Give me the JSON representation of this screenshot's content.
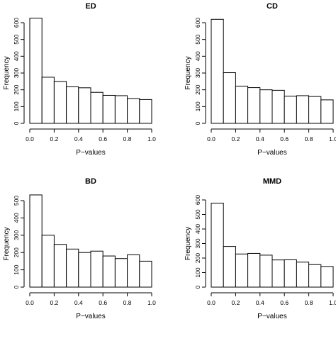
{
  "chart_data": [
    {
      "type": "bar",
      "title": "ED",
      "xlabel": "P−values",
      "ylabel": "Frequency",
      "bin_edges": [
        0,
        0.1,
        0.2,
        0.3,
        0.4,
        0.5,
        0.6,
        0.7,
        0.8,
        0.9,
        1.0
      ],
      "values": [
        627,
        275,
        250,
        218,
        212,
        185,
        167,
        165,
        148,
        142
      ],
      "xticks": [
        "0.0",
        "0.2",
        "0.4",
        "0.6",
        "0.8",
        "1.0"
      ],
      "yticks": [
        "0",
        "100",
        "200",
        "300",
        "400",
        "500",
        "600"
      ],
      "xlim": [
        0,
        1.0
      ],
      "ylim": [
        0,
        600
      ],
      "grid": false
    },
    {
      "type": "bar",
      "title": "CD",
      "xlabel": "P−values",
      "ylabel": "Frequency",
      "bin_edges": [
        0,
        0.1,
        0.2,
        0.3,
        0.4,
        0.5,
        0.6,
        0.7,
        0.8,
        0.9,
        1.0
      ],
      "values": [
        620,
        302,
        222,
        213,
        200,
        197,
        162,
        165,
        160,
        140
      ],
      "xticks": [
        "0.0",
        "0.2",
        "0.4",
        "0.6",
        "0.8",
        "1.0"
      ],
      "yticks": [
        "0",
        "100",
        "200",
        "300",
        "400",
        "500",
        "600"
      ],
      "xlim": [
        0,
        1.0
      ],
      "ylim": [
        0,
        600
      ],
      "grid": false
    },
    {
      "type": "bar",
      "title": "BD",
      "xlabel": "P−values",
      "ylabel": "Frequency",
      "bin_edges": [
        0,
        0.1,
        0.2,
        0.3,
        0.4,
        0.5,
        0.6,
        0.7,
        0.8,
        0.9,
        1.0
      ],
      "values": [
        533,
        300,
        247,
        220,
        200,
        208,
        180,
        165,
        187,
        150
      ],
      "xticks": [
        "0.0",
        "0.2",
        "0.4",
        "0.6",
        "0.8",
        "1.0"
      ],
      "yticks": [
        "0",
        "100",
        "200",
        "300",
        "400",
        "500"
      ],
      "xlim": [
        0,
        1.0
      ],
      "ylim": [
        0,
        500
      ],
      "grid": false
    },
    {
      "type": "bar",
      "title": "MMD",
      "xlabel": "P−values",
      "ylabel": "Frequency",
      "bin_edges": [
        0,
        0.1,
        0.2,
        0.3,
        0.4,
        0.5,
        0.6,
        0.7,
        0.8,
        0.9,
        1.0
      ],
      "values": [
        578,
        280,
        228,
        232,
        220,
        187,
        188,
        172,
        155,
        142
      ],
      "xticks": [
        "0.0",
        "0.2",
        "0.4",
        "0.6",
        "0.8",
        "1.0"
      ],
      "yticks": [
        "0",
        "100",
        "200",
        "300",
        "400",
        "500",
        "600"
      ],
      "xlim": [
        0,
        1.0
      ],
      "ylim": [
        0,
        600
      ],
      "grid": false
    }
  ]
}
